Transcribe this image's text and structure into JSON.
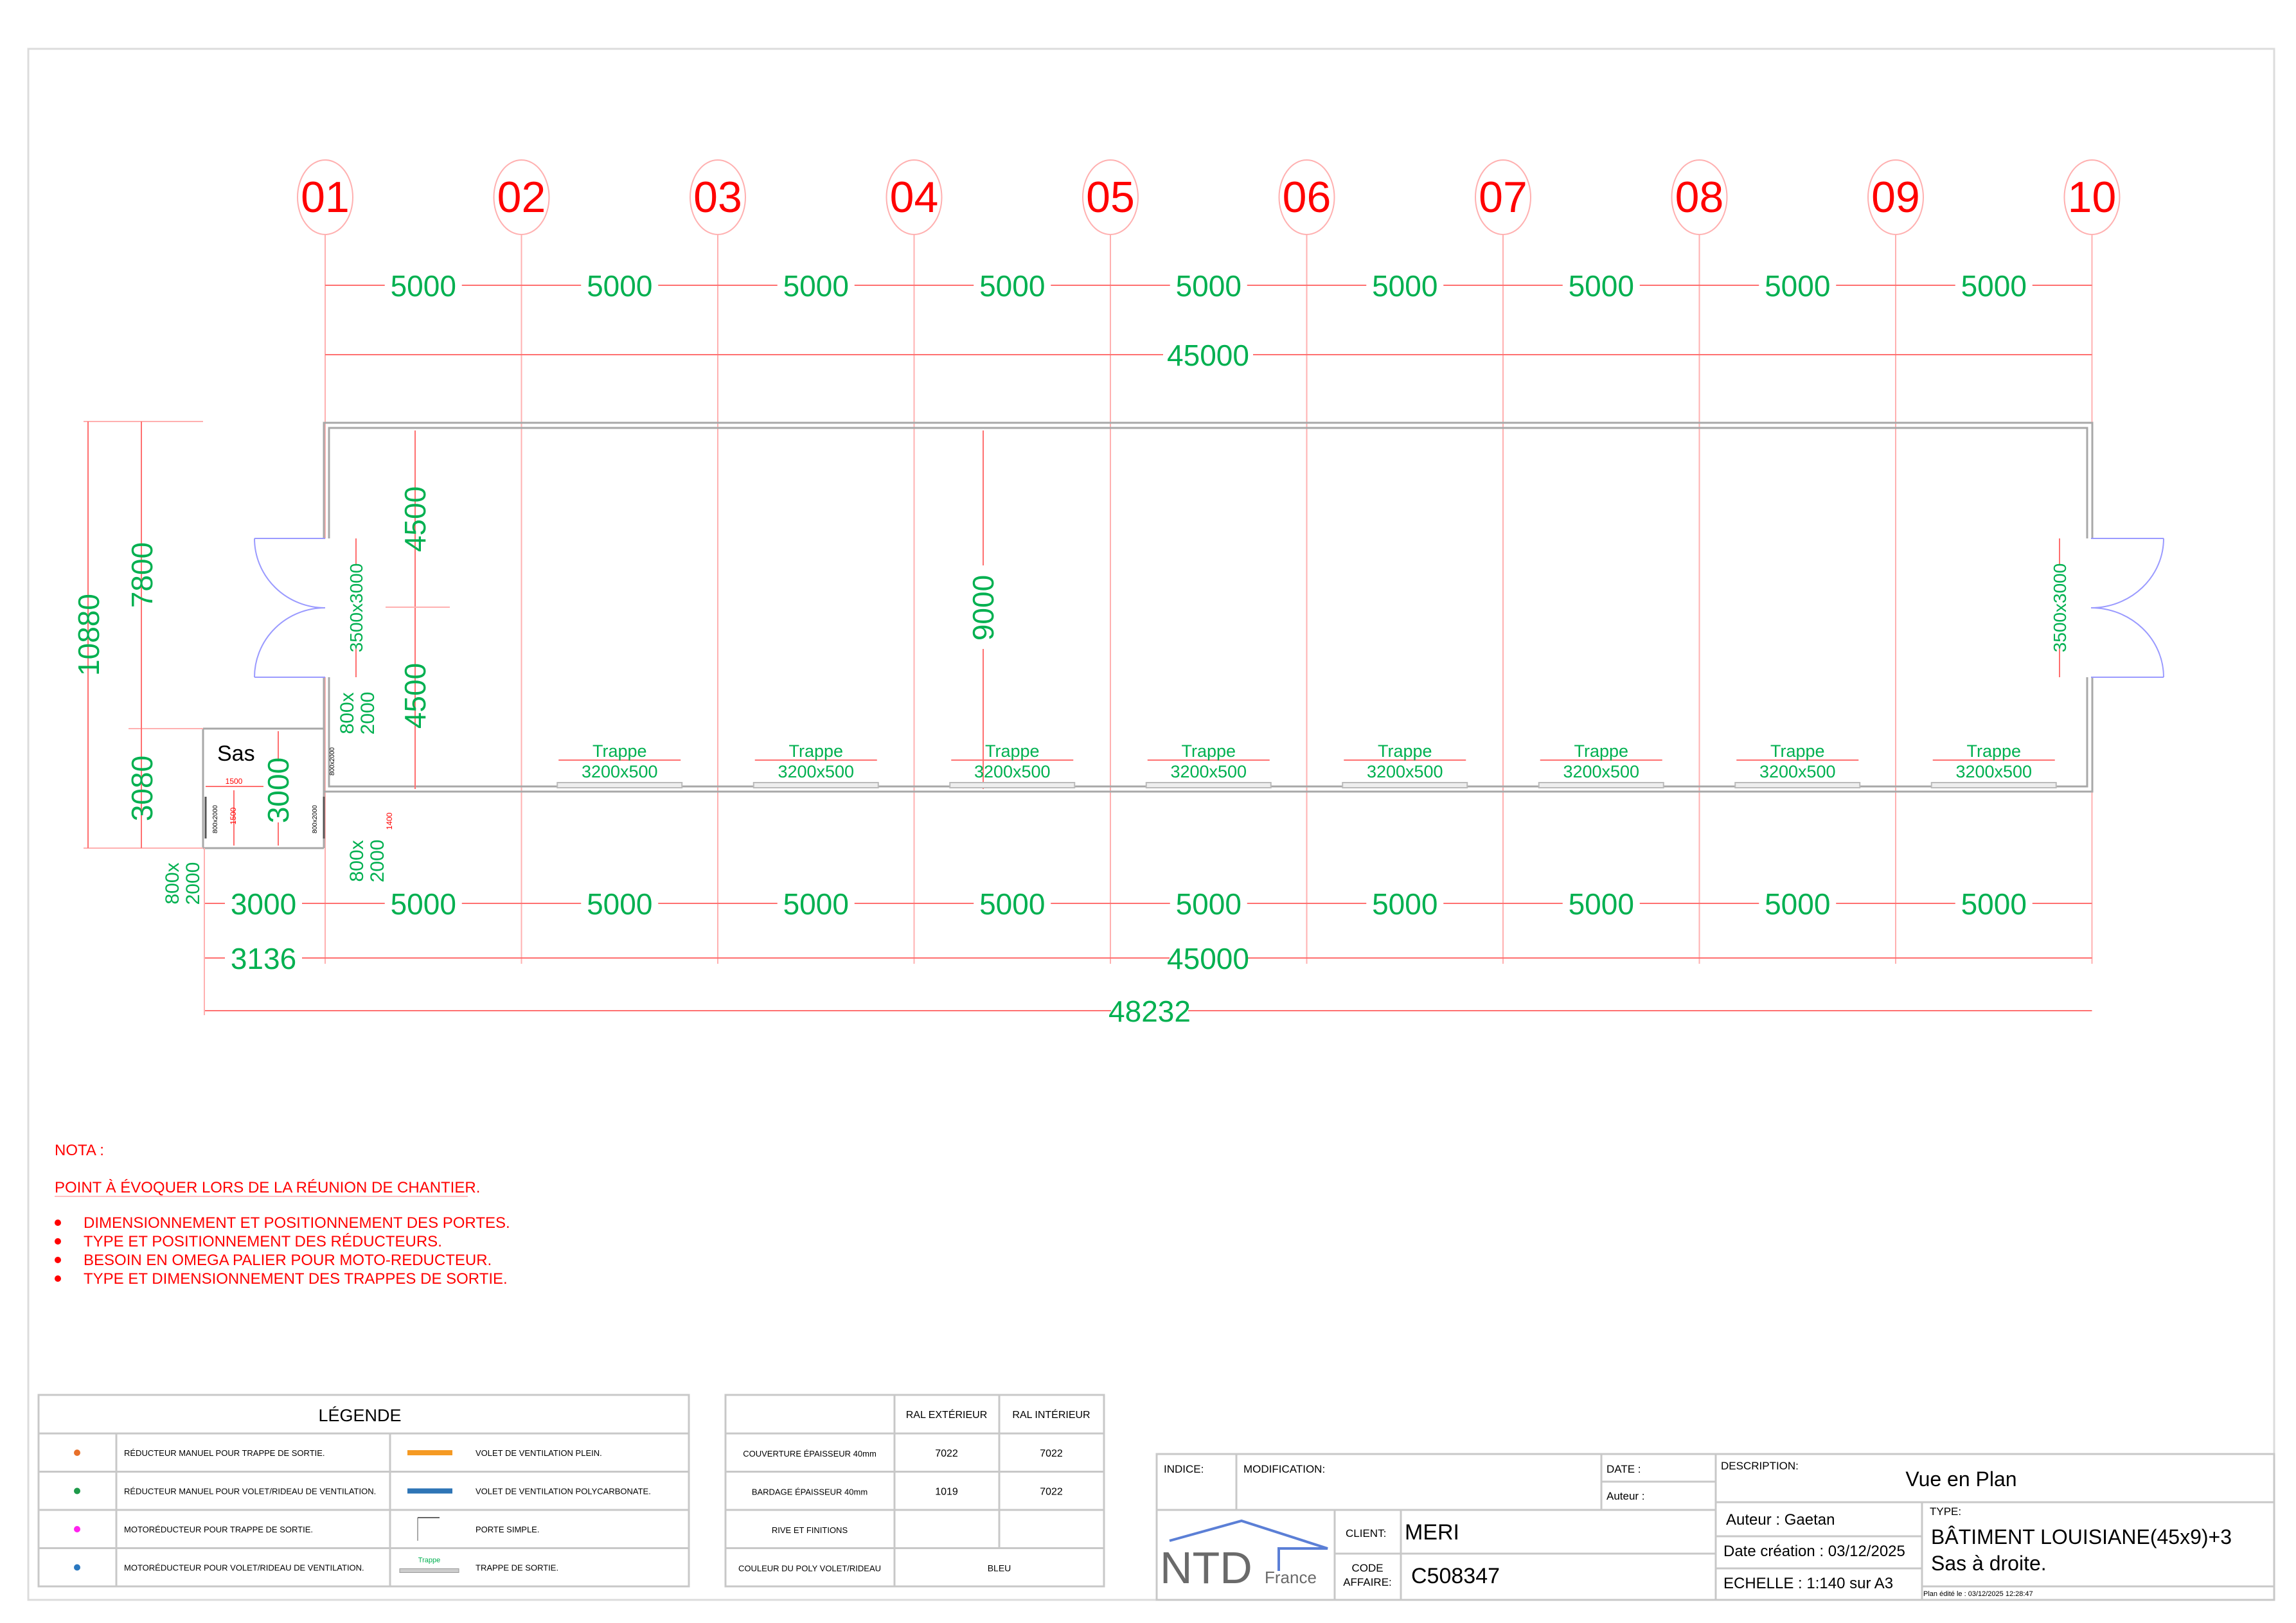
{
  "axes": [
    "01",
    "02",
    "03",
    "04",
    "05",
    "06",
    "07",
    "08",
    "09",
    "10"
  ],
  "top_dimensions": {
    "bays": [
      "5000",
      "5000",
      "5000",
      "5000",
      "5000",
      "5000",
      "5000",
      "5000",
      "5000"
    ],
    "total": "45000"
  },
  "left_dimensions": {
    "total": "10880",
    "upper": "7800",
    "sas": "3080"
  },
  "interior": {
    "half_upper": "4500",
    "half_lower": "4500",
    "width": "9000"
  },
  "doors": {
    "left_main": "3500x3000",
    "right_main": "3500x3000",
    "left_small": "800x\n2000",
    "sas_bottom_left": "800x\n2000",
    "sas_bottom_right": "800x\n2000"
  },
  "sas": {
    "label": "Sas",
    "height": "3000",
    "width_small": "1500",
    "height_small": "1500",
    "offset_small": "1400",
    "door_tag": "800x2000"
  },
  "trappes": [
    {
      "label": "Trappe",
      "size": "3200x500"
    },
    {
      "label": "Trappe",
      "size": "3200x500"
    },
    {
      "label": "Trappe",
      "size": "3200x500"
    },
    {
      "label": "Trappe",
      "size": "3200x500"
    },
    {
      "label": "Trappe",
      "size": "3200x500"
    },
    {
      "label": "Trappe",
      "size": "3200x500"
    },
    {
      "label": "Trappe",
      "size": "3200x500"
    },
    {
      "label": "Trappe",
      "size": "3200x500"
    }
  ],
  "bottom_dimensions": {
    "sas": "3000",
    "bays": [
      "5000",
      "5000",
      "5000",
      "5000",
      "5000",
      "5000",
      "5000",
      "5000",
      "5000"
    ],
    "sas_total": "3136",
    "total": "45000",
    "overall": "48232"
  },
  "notes": {
    "title": "NOTA :",
    "subtitle": "POINT À ÉVOQUER LORS DE LA RÉUNION DE CHANTIER.",
    "items": [
      "DIMENSIONNEMENT ET POSITIONNEMENT DES PORTES.",
      "TYPE ET POSITIONNEMENT DES RÉDUCTEURS.",
      "BESOIN EN OMEGA PALIER POUR MOTO-REDUCTEUR.",
      "TYPE ET DIMENSIONNEMENT DES TRAPPES DE SORTIE."
    ]
  },
  "legend": {
    "title": "LÉGENDE",
    "rows": [
      {
        "dot_color": "#e8702a",
        "left": "RÉDUCTEUR MANUEL POUR TRAPPE DE SORTIE.",
        "icon": "orange-bar",
        "right": "VOLET DE VENTILATION PLEIN."
      },
      {
        "dot_color": "#1e9a4a",
        "left": "RÉDUCTEUR MANUEL POUR VOLET/RIDEAU DE VENTILATION.",
        "icon": "blue-bar",
        "right": "VOLET DE VENTILATION POLYCARBONATE."
      },
      {
        "dot_color": "#ff22ee",
        "left": "MOTORÉDUCTEUR POUR TRAPPE DE SORTIE.",
        "icon": "door-symbol",
        "right": "PORTE SIMPLE."
      },
      {
        "dot_color": "#2a78c0",
        "left": "MOTORÉDUCTEUR POUR VOLET/RIDEAU DE VENTILATION.",
        "icon": "trappe-symbol",
        "right": "TRAPPE DE SORTIE."
      }
    ],
    "trappe_icon_label": "Trappe",
    "colors": {
      "orange": "#f59a23",
      "blue": "#2e75b6"
    }
  },
  "ral_table": {
    "headers": [
      "RAL EXTÉRIEUR",
      "RAL INTÉRIEUR"
    ],
    "rows": [
      {
        "label": "COUVERTURE ÉPAISSEUR 40mm",
        "ext": "7022",
        "int": "7022"
      },
      {
        "label": "BARDAGE ÉPAISSEUR 40mm",
        "ext": "1019",
        "int": "7022"
      },
      {
        "label": "RIVE ET FINITIONS",
        "ext": "",
        "int": ""
      },
      {
        "label": "COULEUR DU POLY VOLET/RIDEAU",
        "merged": "BLEU"
      }
    ]
  },
  "title_block": {
    "indice_label": "INDICE:",
    "modification_label": "MODIFICATION:",
    "date_label": "DATE :",
    "auteur_label": "Auteur :",
    "logo_main": "NTD",
    "logo_sub": "France",
    "client_label": "CLIENT:",
    "client": "MERI",
    "code_label_1": "CODE",
    "code_label_2": "AFFAIRE:",
    "code": "C508347",
    "description_label": "DESCRIPTION:",
    "description": "Vue en Plan",
    "author": "Auteur :  Gaetan",
    "created": "Date création : 03/12/2025",
    "scale": "ECHELLE :  1:140 sur A3",
    "type_label": "TYPE:",
    "type_line1": "BÂTIMENT LOUISIANE(45x9)+3",
    "type_line2": "Sas à droite.",
    "edited": "Plan édité le : 03/12/2025 12:28:47"
  },
  "colors": {
    "dimension_text": "#00b050",
    "axis_label": "#ff0000",
    "notes": "#ff0000",
    "logo_blue": "#5b7fd6",
    "logo_gray": "#6a6a6a"
  }
}
